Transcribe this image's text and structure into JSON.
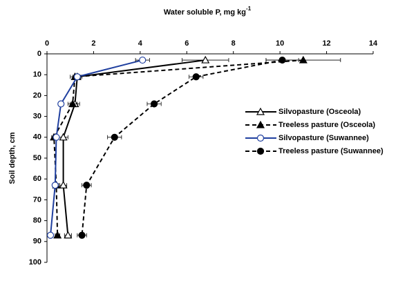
{
  "chart_data": {
    "type": "line",
    "title": "Water soluble P, mg kg",
    "title_superscript": "-1",
    "y_label": "Soil depth, cm",
    "xlim": [
      0,
      14
    ],
    "xticks": [
      0,
      2,
      4,
      6,
      8,
      10,
      12,
      14
    ],
    "ylim": [
      0,
      100
    ],
    "yticks": [
      0,
      10,
      20,
      30,
      40,
      50,
      60,
      70,
      80,
      90,
      100
    ],
    "y_inverted": true,
    "series": [
      {
        "name": "Silvopasture (Osceola)",
        "color": "#000000",
        "marker": "triangle",
        "filled": false,
        "dash": false,
        "x": [
          6.8,
          1.3,
          1.2,
          0.7,
          0.7,
          0.9
        ],
        "y": [
          3,
          11,
          24,
          40,
          63,
          87
        ],
        "xerr": [
          1.0,
          0.2,
          0.2,
          0.2,
          0.15,
          0.15
        ]
      },
      {
        "name": "Treeless pasture (Osceola)",
        "color": "#000000",
        "marker": "triangle",
        "filled": true,
        "dash": true,
        "x": [
          11.0,
          1.2,
          1.1,
          0.3,
          0.4,
          0.45
        ],
        "y": [
          3,
          11,
          24,
          40,
          63,
          87
        ],
        "xerr": [
          1.6,
          0.2,
          0.2,
          0.1,
          0.1,
          0.1
        ]
      },
      {
        "name": "Silvopasture (Suwannee)",
        "color": "#1f3f9f",
        "marker": "circle",
        "filled": false,
        "dash": false,
        "x": [
          4.1,
          1.3,
          0.6,
          0.4,
          0.35,
          0.15
        ],
        "y": [
          3,
          11,
          24,
          40,
          63,
          87
        ],
        "xerr": [
          0.3,
          0.15,
          0.1,
          0.1,
          0.1,
          0.1
        ]
      },
      {
        "name": "Treeless pasture (Suwannee)",
        "color": "#000000",
        "marker": "circle",
        "filled": true,
        "dash": true,
        "x": [
          10.1,
          6.4,
          4.6,
          2.9,
          1.7,
          1.5
        ],
        "y": [
          3,
          11,
          24,
          40,
          63,
          87
        ],
        "xerr": [
          0.7,
          0.3,
          0.3,
          0.3,
          0.2,
          0.2
        ]
      }
    ]
  }
}
